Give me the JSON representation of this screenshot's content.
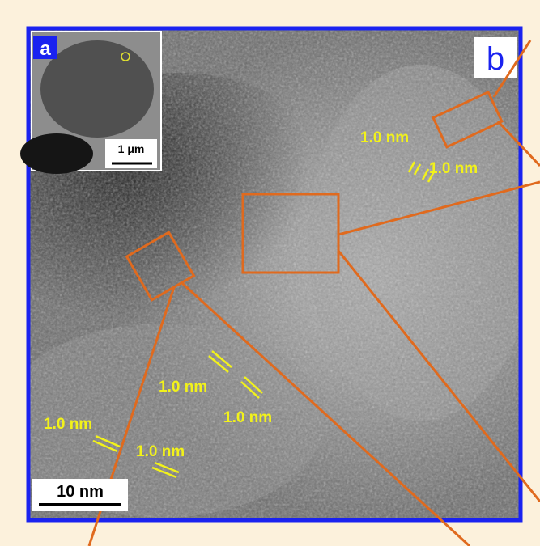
{
  "panel_a": {
    "label": "a",
    "scale_bar": "1 μm"
  },
  "panel_b": {
    "label": "b",
    "scale_bar": "10 nm",
    "annotations": [
      "1.0 nm",
      "1.0 nm",
      "1.0 nm",
      "1.0 nm",
      "1.0 nm",
      "1.0 nm"
    ]
  }
}
